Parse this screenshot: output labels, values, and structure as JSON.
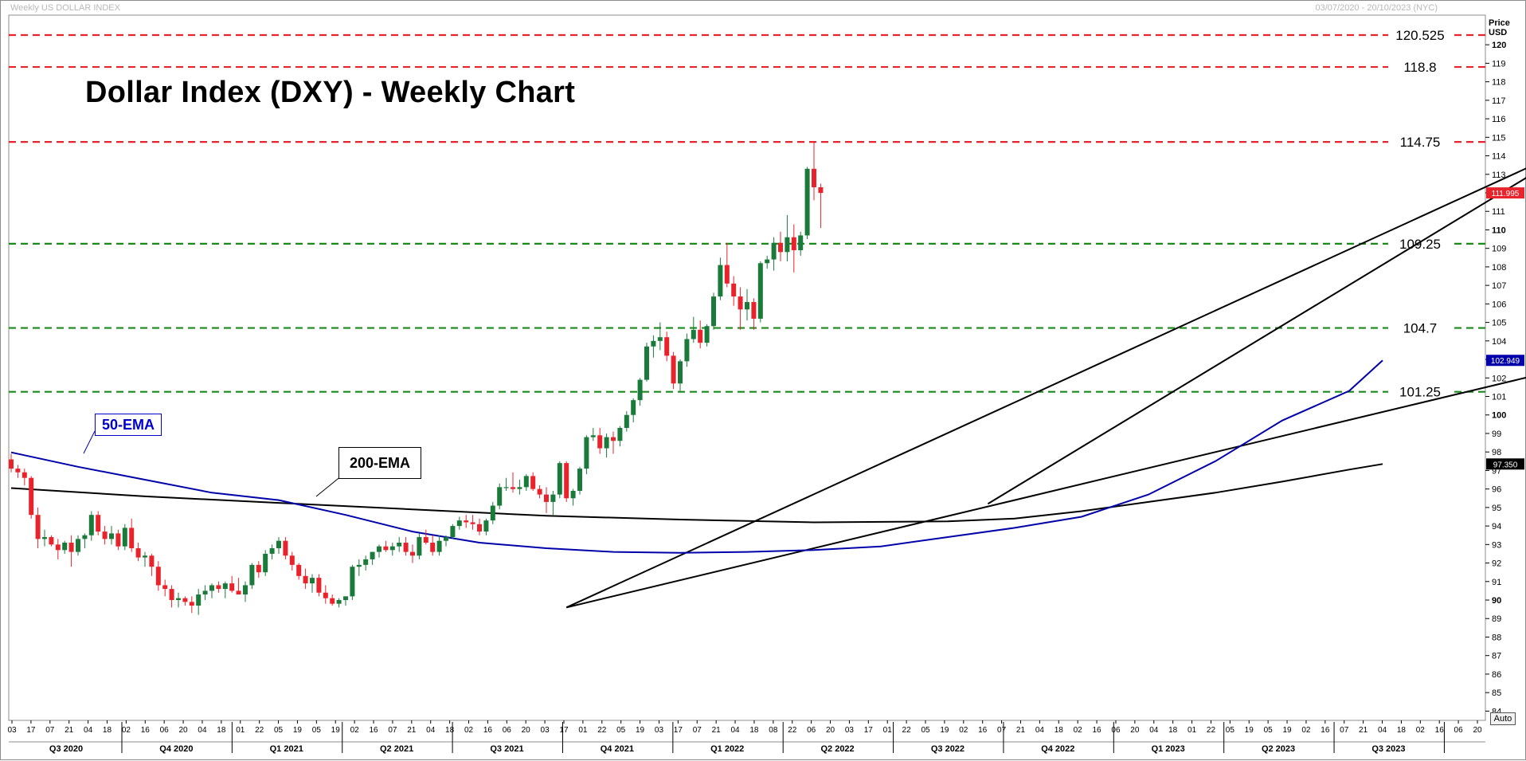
{
  "header": {
    "left_label": "Weekly US DOLLAR INDEX",
    "right_label": "03/07/2020 - 20/10/2023 (NYC)",
    "price_label": "Price",
    "unit_label": "USD",
    "auto_label": "Auto"
  },
  "colors": {
    "bull": "#1a7a3a",
    "bear": "#e8232b",
    "resistance": "#e8232b",
    "support": "#1a8a1a",
    "ema50": "#0000aa",
    "ema200": "#000000",
    "trendline": "#000000"
  },
  "chart_data": {
    "type": "candlestick",
    "title": "Dollar Index (DXY) - Weekly Chart",
    "ylabel": "Price USD",
    "ylim": [
      83.5,
      121.6
    ],
    "yticks": [
      84,
      85,
      86,
      87,
      88,
      89,
      90,
      91,
      92,
      93,
      94,
      95,
      96,
      97,
      98,
      99,
      100,
      101,
      102,
      103,
      104,
      105,
      106,
      107,
      108,
      109,
      110,
      111,
      112,
      113,
      114,
      115,
      116,
      117,
      118,
      119,
      120
    ],
    "x_week_labels": [
      "03",
      "17",
      "07",
      "21",
      "04",
      "18",
      "02",
      "16",
      "06",
      "20",
      "04",
      "18",
      "01",
      "22",
      "05",
      "19",
      "05",
      "19",
      "02",
      "16",
      "07",
      "21",
      "04",
      "18",
      "02",
      "16",
      "06",
      "20",
      "03",
      "17",
      "01",
      "22",
      "05",
      "19",
      "03",
      "17",
      "07",
      "21",
      "04",
      "18",
      "08",
      "22",
      "06",
      "20",
      "03",
      "17",
      "01",
      "22",
      "05",
      "19",
      "02",
      "16",
      "07",
      "21",
      "04",
      "18",
      "02",
      "16",
      "06",
      "20",
      "04",
      "18",
      "01",
      "22",
      "05",
      "19",
      "05",
      "19",
      "02",
      "16",
      "07",
      "21",
      "04",
      "18",
      "02",
      "16",
      "06",
      "20"
    ],
    "quarters": [
      "Q3 2020",
      "Q4 2020",
      "Q1 2021",
      "Q2 2021",
      "Q3 2021",
      "Q4 2021",
      "Q1 2022",
      "Q2 2022",
      "Q3 2022",
      "Q4 2022",
      "Q1 2023",
      "Q2 2023",
      "Q3 2023"
    ],
    "horizontal_levels": [
      {
        "value": 120.525,
        "label": "120.525",
        "kind": "resistance"
      },
      {
        "value": 118.8,
        "label": "118.8",
        "kind": "resistance"
      },
      {
        "value": 114.75,
        "label": "114.75",
        "kind": "resistance"
      },
      {
        "value": 109.25,
        "label": "109.25",
        "kind": "support"
      },
      {
        "value": 104.7,
        "label": "104.7",
        "kind": "support"
      },
      {
        "value": 101.25,
        "label": "101.25",
        "kind": "support"
      }
    ],
    "price_tags": [
      {
        "value": 111.995,
        "label": "111.995",
        "color": "#e8232b"
      },
      {
        "value": 102.949,
        "label": "102.949",
        "color": "#0000aa"
      },
      {
        "value": 97.35,
        "label": "97.350",
        "color": "#000000"
      }
    ],
    "annotations": {
      "ema50_label": "50-EMA",
      "ema200_label": "200-EMA"
    },
    "candles": [
      [
        97.6,
        97.9,
        96.9,
        97.1
      ],
      [
        97.1,
        97.3,
        96.6,
        96.9
      ],
      [
        96.9,
        97.1,
        96.2,
        96.6
      ],
      [
        96.6,
        96.7,
        94.4,
        94.6
      ],
      [
        94.6,
        95.0,
        92.8,
        93.3
      ],
      [
        93.3,
        93.8,
        92.9,
        93.4
      ],
      [
        93.4,
        93.5,
        92.9,
        93.0
      ],
      [
        93.0,
        93.3,
        92.2,
        92.7
      ],
      [
        92.7,
        93.2,
        92.5,
        93.1
      ],
      [
        93.1,
        93.5,
        91.8,
        92.6
      ],
      [
        92.6,
        93.5,
        92.4,
        93.3
      ],
      [
        93.3,
        93.6,
        92.8,
        93.5
      ],
      [
        93.5,
        94.8,
        93.2,
        94.6
      ],
      [
        94.6,
        94.8,
        93.5,
        93.7
      ],
      [
        93.7,
        94.0,
        93.0,
        93.3
      ],
      [
        93.3,
        94.0,
        93.0,
        93.6
      ],
      [
        93.6,
        93.8,
        92.7,
        92.9
      ],
      [
        92.9,
        94.1,
        92.7,
        93.9
      ],
      [
        93.9,
        94.4,
        92.6,
        92.8
      ],
      [
        92.8,
        93.1,
        92.1,
        92.3
      ],
      [
        92.3,
        92.6,
        91.8,
        92.4
      ],
      [
        92.4,
        92.5,
        91.3,
        91.8
      ],
      [
        91.8,
        92.1,
        90.5,
        90.8
      ],
      [
        90.8,
        91.1,
        90.2,
        90.6
      ],
      [
        90.6,
        90.8,
        89.6,
        90.0
      ],
      [
        90.0,
        90.4,
        89.6,
        90.1
      ],
      [
        90.1,
        90.2,
        89.7,
        89.9
      ],
      [
        89.9,
        90.2,
        89.3,
        89.7
      ],
      [
        89.7,
        90.6,
        89.2,
        90.3
      ],
      [
        90.3,
        90.8,
        90.0,
        90.5
      ],
      [
        90.5,
        90.9,
        90.1,
        90.8
      ],
      [
        90.8,
        91.0,
        90.4,
        90.6
      ],
      [
        90.6,
        91.0,
        90.1,
        90.9
      ],
      [
        90.9,
        91.3,
        90.4,
        90.5
      ],
      [
        90.5,
        91.2,
        90.3,
        90.3
      ],
      [
        90.3,
        91.0,
        89.9,
        90.8
      ],
      [
        90.8,
        92.0,
        90.6,
        91.9
      ],
      [
        91.9,
        92.1,
        91.2,
        91.5
      ],
      [
        91.5,
        92.7,
        91.3,
        92.5
      ],
      [
        92.5,
        93.0,
        92.2,
        92.8
      ],
      [
        92.8,
        93.4,
        92.5,
        93.2
      ],
      [
        93.2,
        93.4,
        92.2,
        92.4
      ],
      [
        92.4,
        92.6,
        91.6,
        91.9
      ],
      [
        91.9,
        92.0,
        91.1,
        91.3
      ],
      [
        91.3,
        91.7,
        90.6,
        90.9
      ],
      [
        90.9,
        91.4,
        90.4,
        91.2
      ],
      [
        91.2,
        91.4,
        90.2,
        90.4
      ],
      [
        90.4,
        90.8,
        89.8,
        90.1
      ],
      [
        90.1,
        90.3,
        89.7,
        89.8
      ],
      [
        89.8,
        90.1,
        89.6,
        90.0
      ],
      [
        90.0,
        90.2,
        89.7,
        90.2
      ],
      [
        90.2,
        91.9,
        90.0,
        91.8
      ],
      [
        91.8,
        92.2,
        91.3,
        91.9
      ],
      [
        91.9,
        92.4,
        91.6,
        92.2
      ],
      [
        92.2,
        92.6,
        91.9,
        92.6
      ],
      [
        92.6,
        93.0,
        92.3,
        92.9
      ],
      [
        92.9,
        93.2,
        92.6,
        92.7
      ],
      [
        92.7,
        93.1,
        92.4,
        92.9
      ],
      [
        92.9,
        93.4,
        92.6,
        93.1
      ],
      [
        93.1,
        93.4,
        92.4,
        92.6
      ],
      [
        92.6,
        93.0,
        92.0,
        92.4
      ],
      [
        92.4,
        93.6,
        92.2,
        93.4
      ],
      [
        93.4,
        93.8,
        93.0,
        93.1
      ],
      [
        93.1,
        93.5,
        92.4,
        92.6
      ],
      [
        92.6,
        93.5,
        92.4,
        93.2
      ],
      [
        93.2,
        93.5,
        92.9,
        93.4
      ],
      [
        93.4,
        94.1,
        93.3,
        94.0
      ],
      [
        94.0,
        94.5,
        93.8,
        94.3
      ],
      [
        94.3,
        94.6,
        93.9,
        94.2
      ],
      [
        94.2,
        94.6,
        93.8,
        94.1
      ],
      [
        94.1,
        94.4,
        93.5,
        93.7
      ],
      [
        93.7,
        94.4,
        93.5,
        94.3
      ],
      [
        94.3,
        95.3,
        94.1,
        95.1
      ],
      [
        95.1,
        96.3,
        94.9,
        96.1
      ],
      [
        96.1,
        96.6,
        95.9,
        96.1
      ],
      [
        96.1,
        96.9,
        95.8,
        96.0
      ],
      [
        96.0,
        96.5,
        95.7,
        96.1
      ],
      [
        96.1,
        96.8,
        95.9,
        96.7
      ],
      [
        96.7,
        96.9,
        95.9,
        96.0
      ],
      [
        96.0,
        96.2,
        95.5,
        95.7
      ],
      [
        95.7,
        96.1,
        94.7,
        95.3
      ],
      [
        95.3,
        95.9,
        94.6,
        95.7
      ],
      [
        95.7,
        97.5,
        95.5,
        97.4
      ],
      [
        97.4,
        97.5,
        95.3,
        95.5
      ],
      [
        95.5,
        96.0,
        95.1,
        95.9
      ],
      [
        95.9,
        97.2,
        95.7,
        97.1
      ],
      [
        97.1,
        98.9,
        96.8,
        98.8
      ],
      [
        98.8,
        99.3,
        98.6,
        98.9
      ],
      [
        98.9,
        99.3,
        97.9,
        98.2
      ],
      [
        98.2,
        99.0,
        97.7,
        98.8
      ],
      [
        98.8,
        99.1,
        97.9,
        98.6
      ],
      [
        98.6,
        99.4,
        98.3,
        99.3
      ],
      [
        99.3,
        100.2,
        99.1,
        100.0
      ],
      [
        100.0,
        100.9,
        99.6,
        100.8
      ],
      [
        100.8,
        102.0,
        100.5,
        101.9
      ],
      [
        101.9,
        103.9,
        101.8,
        103.7
      ],
      [
        103.7,
        104.3,
        103.1,
        104.0
      ],
      [
        104.0,
        105.0,
        103.5,
        104.2
      ],
      [
        104.2,
        104.5,
        102.9,
        103.2
      ],
      [
        103.2,
        103.4,
        101.4,
        101.7
      ],
      [
        101.7,
        103.0,
        101.3,
        102.9
      ],
      [
        102.9,
        104.4,
        102.6,
        104.1
      ],
      [
        104.1,
        105.3,
        103.9,
        104.6
      ],
      [
        104.6,
        105.1,
        103.6,
        103.9
      ],
      [
        103.9,
        104.9,
        103.7,
        104.8
      ],
      [
        104.8,
        106.6,
        104.6,
        106.4
      ],
      [
        106.4,
        108.5,
        106.2,
        108.1
      ],
      [
        108.1,
        109.3,
        106.9,
        107.1
      ],
      [
        107.1,
        107.5,
        105.9,
        106.4
      ],
      [
        106.4,
        106.9,
        104.6,
        105.7
      ],
      [
        105.7,
        106.8,
        105.1,
        106.1
      ],
      [
        106.1,
        106.3,
        104.6,
        105.2
      ],
      [
        105.2,
        108.3,
        105.0,
        108.2
      ],
      [
        108.2,
        108.6,
        107.9,
        108.4
      ],
      [
        108.4,
        109.6,
        107.8,
        109.3
      ],
      [
        109.3,
        109.9,
        108.3,
        108.8
      ],
      [
        108.8,
        110.8,
        108.3,
        109.6
      ],
      [
        109.6,
        110.3,
        107.7,
        108.9
      ],
      [
        108.9,
        109.9,
        108.6,
        109.7
      ],
      [
        109.7,
        113.4,
        109.5,
        113.3
      ],
      [
        113.3,
        114.8,
        111.6,
        112.3
      ],
      [
        112.3,
        112.5,
        110.1,
        111.995
      ]
    ],
    "ema50": [
      [
        0,
        97.98
      ],
      [
        10,
        97.2
      ],
      [
        20,
        96.5
      ],
      [
        30,
        95.8
      ],
      [
        40,
        95.4
      ],
      [
        50,
        94.6
      ],
      [
        60,
        93.7
      ],
      [
        70,
        93.1
      ],
      [
        80,
        92.8
      ],
      [
        90,
        92.6
      ],
      [
        100,
        92.55
      ],
      [
        110,
        92.6
      ],
      [
        120,
        92.7
      ],
      [
        130,
        92.9
      ],
      [
        140,
        93.4
      ],
      [
        150,
        93.9
      ],
      [
        160,
        94.5
      ],
      [
        170,
        95.7
      ],
      [
        180,
        97.5
      ],
      [
        190,
        99.7
      ],
      [
        200,
        101.3
      ],
      [
        205,
        102.949
      ]
    ],
    "ema200": [
      [
        0,
        96.05
      ],
      [
        20,
        95.6
      ],
      [
        40,
        95.25
      ],
      [
        60,
        94.9
      ],
      [
        80,
        94.55
      ],
      [
        100,
        94.35
      ],
      [
        120,
        94.2
      ],
      [
        140,
        94.25
      ],
      [
        150,
        94.4
      ],
      [
        160,
        94.8
      ],
      [
        170,
        95.3
      ],
      [
        180,
        95.8
      ],
      [
        190,
        96.4
      ],
      [
        200,
        97.05
      ],
      [
        205,
        97.35
      ]
    ],
    "trendlines": [
      {
        "from": [
          83,
          89.6
        ],
        "to": [
          236,
          114.9
        ]
      },
      {
        "from": [
          83,
          89.6
        ],
        "to": [
          284,
          107.0
        ]
      },
      {
        "from": [
          146,
          95.2
        ],
        "to": [
          236,
          114.9
        ]
      }
    ]
  }
}
